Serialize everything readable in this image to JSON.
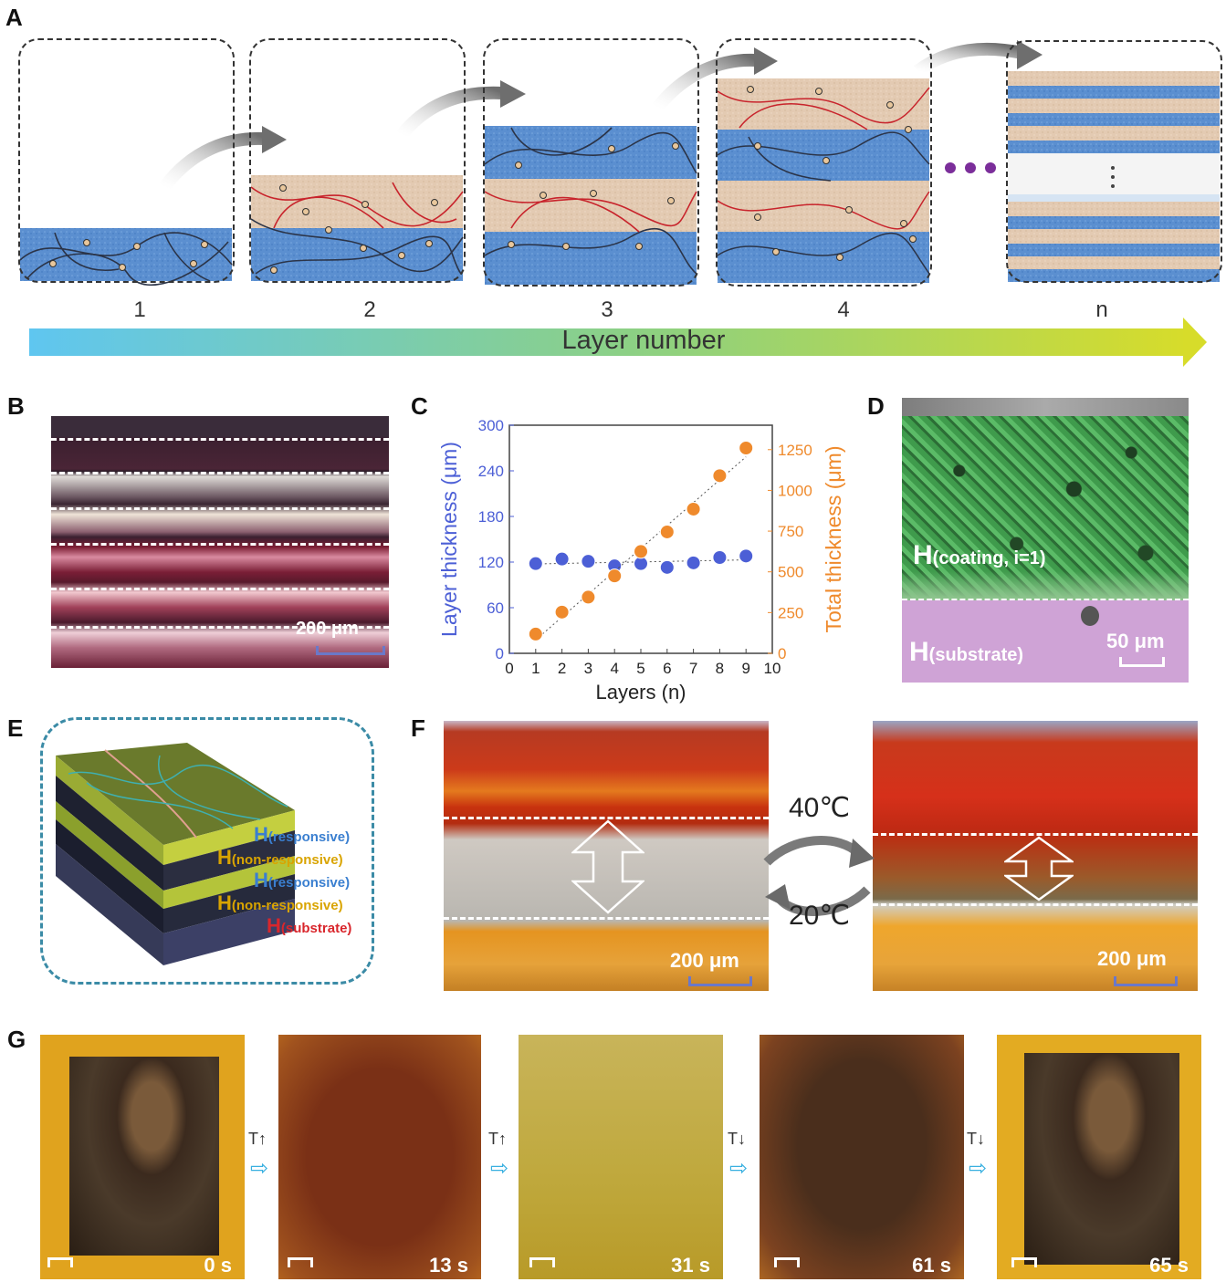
{
  "panels": {
    "A": "A",
    "B": "B",
    "C": "C",
    "D": "D",
    "E": "E",
    "F": "F",
    "G": "G"
  },
  "panel_a": {
    "stage_labels": [
      "1",
      "2",
      "3",
      "4",
      "n"
    ],
    "axis_arrow_label": "Layer number",
    "colors": {
      "responsive_layer": "#5b8fd0",
      "nonresponsive_layer": "#e6cdb4",
      "network_dark": "#2b3448",
      "network_red": "#c8242c",
      "dots": "#7b2e9a"
    }
  },
  "panel_b": {
    "scale_label": "200 μm"
  },
  "panel_d": {
    "coating_label_main": "H",
    "coating_label_sub": "(coating, i=1)",
    "substrate_label_main": "H",
    "substrate_label_sub": "(substrate)",
    "scale_label": "50 μm"
  },
  "panel_e": {
    "labels": [
      {
        "main": "H",
        "sub": "(responsive)",
        "color": "#3a7fd0"
      },
      {
        "main": "H",
        "sub": "(non-responsive)",
        "color": "#d9a400"
      },
      {
        "main": "H",
        "sub": "(responsive)",
        "color": "#3a7fd0"
      },
      {
        "main": "H",
        "sub": "(non-responsive)",
        "color": "#d9a400"
      },
      {
        "main": "H",
        "sub": "(substrate)",
        "color": "#d9262c"
      }
    ]
  },
  "panel_f": {
    "temp_high": "40℃",
    "temp_low": "20℃",
    "scale_label_left": "200 μm",
    "scale_label_right": "200 μm"
  },
  "panel_g": {
    "times": [
      "0 s",
      "13 s",
      "31 s",
      "61 s",
      "65 s"
    ],
    "arrows": [
      "T↑",
      "T↑",
      "T↓",
      "T↓"
    ]
  },
  "chart_data": {
    "type": "scatter",
    "xlabel": "Layers (n)",
    "ylabel": "Layer thickness (μm)",
    "y2label": "Total thickness (μm)",
    "xlim": [
      0,
      10
    ],
    "ylim": [
      0,
      300
    ],
    "y2lim": [
      0,
      1400
    ],
    "x_ticks": [
      0,
      1,
      2,
      3,
      4,
      5,
      6,
      7,
      8,
      9,
      10
    ],
    "y_ticks": [
      0,
      60,
      120,
      180,
      240,
      300
    ],
    "y2_ticks": [
      0,
      250,
      500,
      750,
      1000,
      1250
    ],
    "series": [
      {
        "axis": "left",
        "color": "#4c5fd6",
        "x": [
          1,
          2,
          3,
          4,
          5,
          6,
          7,
          8,
          9
        ],
        "values": [
          118,
          124,
          121,
          115,
          118,
          113,
          119,
          126,
          128
        ]
      },
      {
        "axis": "right",
        "color": "#ef8a2c",
        "x": [
          1,
          2,
          3,
          4,
          5,
          6,
          7,
          8,
          9
        ],
        "values": [
          118,
          253,
          345,
          475,
          625,
          745,
          885,
          1090,
          1260
        ]
      }
    ]
  }
}
